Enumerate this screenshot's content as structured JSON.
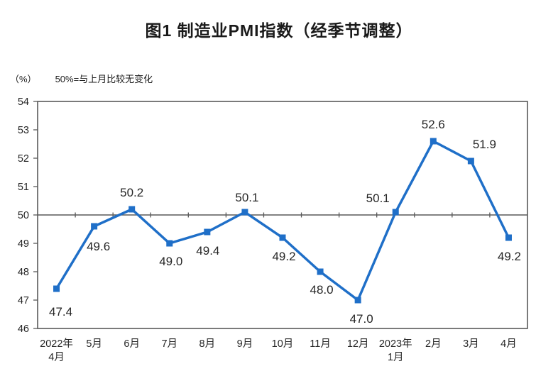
{
  "chart_data": {
    "type": "line",
    "title": "图1  制造业PMI指数（经季节调整）",
    "unit_label": "（%）",
    "reference_note": "50%=与上月比较无变化",
    "categories": [
      [
        "2022年",
        "4月"
      ],
      [
        "5月"
      ],
      [
        "6月"
      ],
      [
        "7月"
      ],
      [
        "8月"
      ],
      [
        "9月"
      ],
      [
        "10月"
      ],
      [
        "11月"
      ],
      [
        "12月"
      ],
      [
        "2023年",
        "1月"
      ],
      [
        "2月"
      ],
      [
        "3月"
      ],
      [
        "4月"
      ]
    ],
    "values": [
      47.4,
      49.6,
      50.2,
      49.0,
      49.4,
      50.1,
      49.2,
      48.0,
      47.0,
      50.1,
      52.6,
      51.9,
      49.2
    ],
    "data_labels": [
      "47.4",
      "49.6",
      "50.2",
      "49.0",
      "49.4",
      "50.1",
      "49.2",
      "48.0",
      "47.0",
      "50.1",
      "52.6",
      "51.9",
      "49.2"
    ],
    "yticks": [
      46,
      47,
      48,
      49,
      50,
      51,
      52,
      53,
      54
    ],
    "ylim": [
      46,
      54
    ],
    "reference_value": 50,
    "legend": "none",
    "grid": "reference-line-only",
    "colors": {
      "line": "#1f6fc8",
      "marker": "#1f6fc8",
      "axis": "#595959",
      "reference_line": "#595959",
      "text": "#262626"
    }
  }
}
